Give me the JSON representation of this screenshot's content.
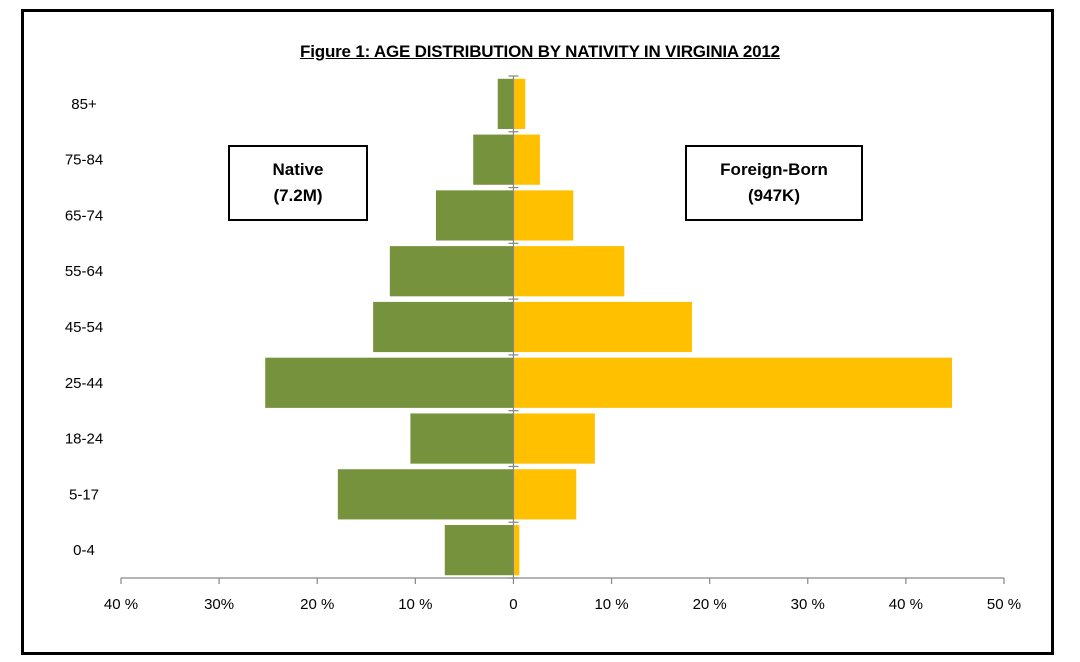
{
  "chart_data": {
    "type": "bar",
    "orientation": "horizontal-pyramid",
    "title": "Figure 1: AGE DISTRIBUTION BY NATIVITY IN VIRGINIA 2012",
    "categories": [
      "85+",
      "75-84",
      "65-74",
      "55-64",
      "45-54",
      "25-44",
      "18-24",
      "5-17",
      "0-4"
    ],
    "series": [
      {
        "name": "Native",
        "legend_lines": [
          "Native",
          "(7.2M)"
        ],
        "color": "#76923c",
        "direction": "left",
        "values": [
          1.6,
          4.1,
          7.9,
          12.6,
          14.3,
          25.3,
          10.5,
          17.9,
          7.0
        ]
      },
      {
        "name": "Foreign-Born",
        "legend_lines": [
          "Foreign-Born",
          "(947K)"
        ],
        "color": "#ffc000",
        "direction": "right",
        "values": [
          1.2,
          2.7,
          6.1,
          11.3,
          18.2,
          44.7,
          8.3,
          6.4,
          0.6
        ]
      }
    ],
    "xlim": [
      -40,
      50
    ],
    "x_ticks": [
      {
        "value": -40,
        "label": "40 %"
      },
      {
        "value": -30,
        "label": "30%"
      },
      {
        "value": -20,
        "label": "20 %"
      },
      {
        "value": -10,
        "label": "10 %"
      },
      {
        "value": 0,
        "label": "0"
      },
      {
        "value": 10,
        "label": "10 %"
      },
      {
        "value": 20,
        "label": "20 %"
      },
      {
        "value": 30,
        "label": "30 %"
      },
      {
        "value": 40,
        "label": "40 %"
      },
      {
        "value": 50,
        "label": "50 %"
      }
    ],
    "grid": false,
    "legend_placement": "inside, upper-left and upper-right boxes"
  }
}
